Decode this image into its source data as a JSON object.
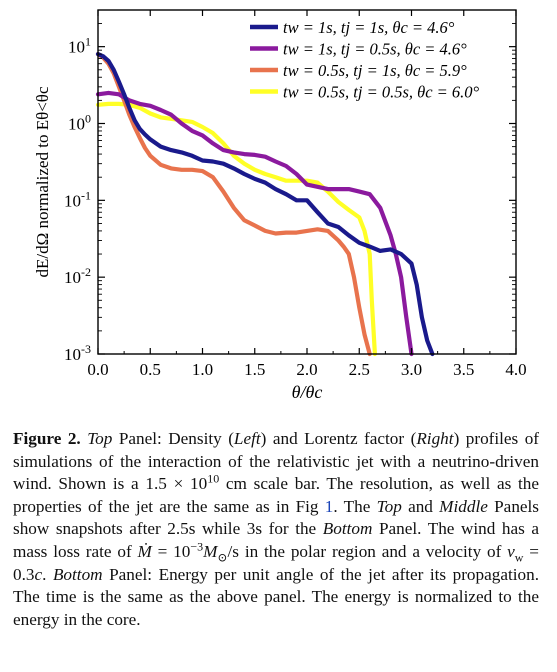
{
  "chart_data": {
    "type": "line",
    "xlabel": "θ/θc",
    "ylabel": "dE/dΩ normalized to Eθ<θc",
    "xlim": [
      0.0,
      4.0
    ],
    "ylim": [
      0.001,
      30
    ],
    "yscale": "log",
    "xticks": [
      "0.0",
      "0.5",
      "1.0",
      "1.5",
      "2.0",
      "2.5",
      "3.0",
      "3.5",
      "4.0"
    ],
    "yticks": [
      {
        "base": "10",
        "exp": "-3",
        "value": 0.001
      },
      {
        "base": "10",
        "exp": "-2",
        "value": 0.01
      },
      {
        "base": "10",
        "exp": "-1",
        "value": 0.1
      },
      {
        "base": "10",
        "exp": "0",
        "value": 1
      },
      {
        "base": "10",
        "exp": "1",
        "value": 10
      }
    ],
    "legend_position": "top-right",
    "series": [
      {
        "name": "tw = 1s, tj = 1s, θc = 4.6°",
        "color": "#1a1a8c",
        "x": [
          0.0,
          0.05,
          0.1,
          0.15,
          0.2,
          0.25,
          0.3,
          0.35,
          0.4,
          0.45,
          0.5,
          0.6,
          0.7,
          0.8,
          0.9,
          1.0,
          1.1,
          1.2,
          1.3,
          1.4,
          1.5,
          1.6,
          1.7,
          1.8,
          1.9,
          2.0,
          2.1,
          2.2,
          2.3,
          2.4,
          2.5,
          2.6,
          2.7,
          2.8,
          2.9,
          3.0,
          3.05,
          3.1,
          3.15,
          3.2
        ],
        "y": [
          8,
          7.5,
          6.5,
          5,
          3.5,
          2.4,
          1.6,
          1.1,
          0.85,
          0.72,
          0.62,
          0.5,
          0.45,
          0.42,
          0.38,
          0.33,
          0.32,
          0.3,
          0.26,
          0.22,
          0.19,
          0.17,
          0.14,
          0.12,
          0.1,
          0.1,
          0.07,
          0.05,
          0.045,
          0.035,
          0.028,
          0.025,
          0.022,
          0.023,
          0.02,
          0.015,
          0.008,
          0.003,
          0.0015,
          0.001
        ]
      },
      {
        "name": "tw = 1s, tj = 0.5s, θc = 4.6°",
        "color": "#8b1a9e",
        "x": [
          0.0,
          0.1,
          0.2,
          0.3,
          0.4,
          0.5,
          0.6,
          0.7,
          0.8,
          0.9,
          1.0,
          1.1,
          1.2,
          1.3,
          1.4,
          1.5,
          1.6,
          1.7,
          1.8,
          1.9,
          2.0,
          2.1,
          2.2,
          2.3,
          2.4,
          2.5,
          2.6,
          2.7,
          2.8,
          2.85,
          2.9,
          2.95,
          3.0
        ],
        "y": [
          2.4,
          2.5,
          2.4,
          2.0,
          1.8,
          1.7,
          1.5,
          1.3,
          1.0,
          0.8,
          0.7,
          0.55,
          0.45,
          0.42,
          0.4,
          0.39,
          0.37,
          0.32,
          0.28,
          0.22,
          0.16,
          0.15,
          0.14,
          0.14,
          0.14,
          0.13,
          0.12,
          0.08,
          0.035,
          0.02,
          0.01,
          0.003,
          0.001
        ]
      },
      {
        "name": "tw = 0.5s, tj = 1s, θc = 5.9°",
        "color": "#e8734d",
        "x": [
          0.0,
          0.05,
          0.1,
          0.15,
          0.2,
          0.25,
          0.3,
          0.35,
          0.4,
          0.45,
          0.5,
          0.6,
          0.7,
          0.8,
          0.9,
          1.0,
          1.1,
          1.2,
          1.3,
          1.4,
          1.5,
          1.6,
          1.7,
          1.8,
          1.9,
          2.0,
          2.1,
          2.2,
          2.3,
          2.35,
          2.4,
          2.45,
          2.5,
          2.55,
          2.6
        ],
        "y": [
          8,
          7.2,
          6.0,
          4.5,
          3.0,
          2.0,
          1.3,
          0.9,
          0.65,
          0.48,
          0.38,
          0.29,
          0.26,
          0.25,
          0.25,
          0.24,
          0.2,
          0.13,
          0.08,
          0.055,
          0.047,
          0.04,
          0.037,
          0.038,
          0.038,
          0.04,
          0.042,
          0.04,
          0.03,
          0.025,
          0.02,
          0.01,
          0.004,
          0.0018,
          0.001
        ]
      },
      {
        "name": "tw = 0.5s, tj = 0.5s, θc = 6.0°",
        "color": "#ffff26",
        "x": [
          0.0,
          0.1,
          0.2,
          0.3,
          0.4,
          0.5,
          0.6,
          0.7,
          0.8,
          0.9,
          1.0,
          1.1,
          1.2,
          1.3,
          1.4,
          1.5,
          1.6,
          1.7,
          1.8,
          1.9,
          2.0,
          2.1,
          2.2,
          2.3,
          2.4,
          2.5,
          2.55,
          2.6,
          2.62,
          2.65
        ],
        "y": [
          1.75,
          1.8,
          1.8,
          1.75,
          1.6,
          1.35,
          1.2,
          1.15,
          1.1,
          1.05,
          0.9,
          0.75,
          0.55,
          0.38,
          0.3,
          0.25,
          0.22,
          0.2,
          0.18,
          0.18,
          0.18,
          0.17,
          0.13,
          0.095,
          0.075,
          0.06,
          0.04,
          0.02,
          0.005,
          0.001
        ]
      }
    ]
  },
  "caption": {
    "figure_label": "Figure 2.",
    "segments": [
      {
        "text": " ",
        "style": "normal"
      },
      {
        "text": "Top",
        "style": "italic"
      },
      {
        "text": " Panel: Density (",
        "style": "normal"
      },
      {
        "text": "Left",
        "style": "italic"
      },
      {
        "text": ") and Lorentz factor (",
        "style": "normal"
      },
      {
        "text": "Right",
        "style": "italic"
      },
      {
        "text": ") profiles of simulations of the interaction of the relativistic jet with a neutrino-driven wind. Shown is a 1.5 × 10",
        "style": "normal"
      },
      {
        "text": "10",
        "style": "sup"
      },
      {
        "text": " cm scale bar. The resolution, as well as the properties of the jet are the same as in Fig ",
        "style": "normal"
      },
      {
        "text": "1",
        "style": "ref"
      },
      {
        "text": ". The ",
        "style": "normal"
      },
      {
        "text": "Top",
        "style": "italic"
      },
      {
        "text": " and ",
        "style": "normal"
      },
      {
        "text": "Middle",
        "style": "italic"
      },
      {
        "text": " Panels show snapshots after 2.5s while 3s for the ",
        "style": "normal"
      },
      {
        "text": "Bottom",
        "style": "italic"
      },
      {
        "text": " Panel. The wind has a mass loss rate of ",
        "style": "normal"
      },
      {
        "text": "Ṁ",
        "style": "italic"
      },
      {
        "text": " = 10",
        "style": "normal"
      },
      {
        "text": "−3",
        "style": "sup"
      },
      {
        "text": "M",
        "style": "italic"
      },
      {
        "text": "⊙",
        "style": "sub"
      },
      {
        "text": "/s in the polar region and a velocity of ",
        "style": "normal"
      },
      {
        "text": "v",
        "style": "italic"
      },
      {
        "text": "w",
        "style": "sub"
      },
      {
        "text": " = 0.3",
        "style": "normal"
      },
      {
        "text": "c",
        "style": "italic"
      },
      {
        "text": ". ",
        "style": "normal"
      },
      {
        "text": "Bottom",
        "style": "italic"
      },
      {
        "text": " Panel: Energy per unit angle of the jet after its propagation. The time is the same as the above panel. The energy is normalized to the energy in the core.",
        "style": "normal"
      }
    ]
  }
}
